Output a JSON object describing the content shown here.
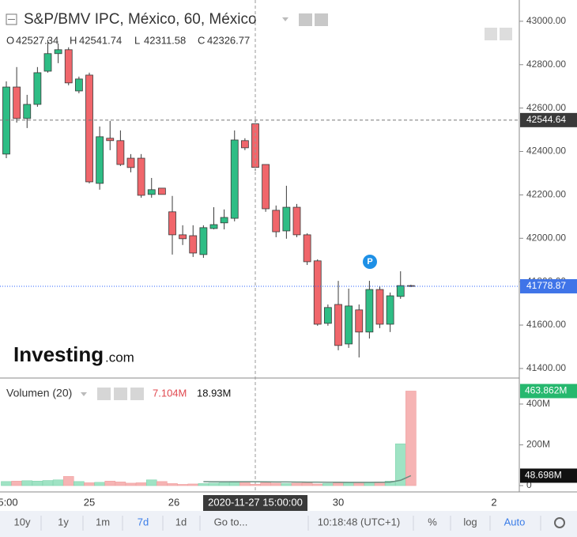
{
  "header": {
    "title": "S&P/BMV IPC, México, 60, México",
    "ohlc_letters": [
      "O",
      "H",
      "L",
      "C"
    ]
  },
  "logo": {
    "text": "Investing",
    "suffix": ".com"
  },
  "badge": "P",
  "toolbar": [
    "10y",
    "1y",
    "1m",
    "7d",
    "1d",
    "Go to...",
    "10:18:48 (UTC+1)",
    "%",
    "log",
    "Auto"
  ],
  "chart_data": [
    {
      "type": "candlestick",
      "up_color": "#2ebd85",
      "down_color": "#f0666b",
      "x_labels": [
        "5:00",
        "25",
        "26",
        "30",
        "2"
      ],
      "open": [
        42388,
        42697,
        42552,
        42617,
        42770,
        42851,
        42869,
        42679,
        42752,
        42253,
        42461,
        42450,
        42369,
        42369,
        42202,
        42231,
        42122,
        42016,
        42012,
        41925,
        42045,
        42071,
        42092,
        42450,
        42527.34,
        42340,
        42129,
        42034,
        42143,
        42016,
        41896,
        41608,
        41695,
        41513,
        41670,
        41568,
        41764,
        41604,
        41732,
        41782
      ],
      "high": [
        42723,
        42789,
        42661,
        42789,
        42916,
        42898,
        42880,
        42745,
        42763,
        42515,
        42541,
        42497,
        42388,
        42388,
        42278,
        42231,
        42195,
        42060,
        42060,
        42060,
        42143,
        42133,
        42497,
        42461,
        42541.74,
        42340,
        42151,
        42242,
        42158,
        42023,
        41903,
        41695,
        41804,
        41768,
        41695,
        41804,
        41779,
        41750,
        41848,
        41786
      ],
      "low": [
        42369,
        42533,
        42508,
        42606,
        42763,
        42807,
        42705,
        42668,
        42253,
        42224,
        42406,
        42333,
        42304,
        42187,
        42187,
        42202,
        41925,
        41969,
        41914,
        41910,
        42041,
        42041,
        42078,
        42406,
        42311.58,
        42122,
        42005,
        41998,
        42005,
        41877,
        41597,
        41597,
        41484,
        41495,
        41451,
        41538,
        41586,
        41568,
        41721,
        41775
      ],
      "close": [
        42697,
        42552,
        42617,
        42763,
        42851,
        42869,
        42716,
        42734,
        42260,
        42468,
        42450,
        42340,
        42326,
        42198,
        42224,
        42202,
        42016,
        41998,
        41932,
        42049,
        42063,
        42096,
        42453,
        42417,
        42326.77,
        42136,
        42030,
        42143,
        42016,
        41892,
        41604,
        41681,
        41506,
        41688,
        41568,
        41764,
        41604,
        41735,
        41782,
        41778.87
      ],
      "ylim": [
        41356,
        43098
      ],
      "yticks": [
        {
          "value": 41400,
          "label": "41400.00"
        },
        {
          "value": 41600,
          "label": "41600.00"
        },
        {
          "value": 41800,
          "label": "41800.00"
        },
        {
          "value": 42000,
          "label": "42000.00"
        },
        {
          "value": 42200,
          "label": "42200.00"
        },
        {
          "value": 42400,
          "label": "42400.00"
        },
        {
          "value": 42600,
          "label": "42600.00"
        },
        {
          "value": 42800,
          "label": "42800.00"
        },
        {
          "value": 43000,
          "label": "43000.00"
        }
      ],
      "crosshair": {
        "time": "2020-11-27 15:00:00",
        "price": 42544.64,
        "index": 24
      }
    },
    {
      "type": "bar",
      "title": "Volumen (20)",
      "up_color": "#9fe3c4",
      "down_color": "#f6b4b4",
      "ma_color": "#6b8f82",
      "values": [
        20000000,
        22000000,
        24000000,
        22000000,
        25000000,
        28000000,
        45000000,
        20000000,
        14000000,
        16000000,
        22000000,
        18000000,
        12000000,
        14000000,
        28000000,
        20000000,
        10000000,
        6000000,
        8000000,
        10000000,
        12000000,
        14000000,
        16000000,
        18000000,
        7104000,
        15000000,
        12000000,
        10000000,
        12000000,
        14000000,
        8000000,
        10000000,
        12000000,
        14000000,
        12000000,
        16000000,
        18000000,
        22000000,
        205000000,
        463862000
      ],
      "value_labels": [
        null,
        null,
        null,
        null,
        null,
        null,
        null,
        null,
        null,
        null,
        null,
        null,
        null,
        null,
        null,
        null,
        null,
        null,
        null,
        null,
        null,
        null,
        null,
        null,
        "7.104M",
        null,
        null,
        null,
        null,
        null,
        null,
        null,
        null,
        null,
        null,
        null,
        null,
        null,
        null,
        "463.862M"
      ],
      "ma_values": [
        null,
        null,
        null,
        null,
        null,
        null,
        null,
        null,
        null,
        null,
        null,
        null,
        null,
        null,
        null,
        null,
        null,
        null,
        null,
        19500000,
        19000000,
        18800000,
        18700000,
        18900000,
        18930000,
        18500000,
        18000000,
        17800000,
        17500000,
        17000000,
        16800000,
        16500000,
        16300000,
        16200000,
        16100000,
        16000000,
        16500000,
        17000000,
        26000000,
        48698000
      ],
      "ma_labels": [
        null,
        null,
        null,
        null,
        null,
        null,
        null,
        null,
        null,
        null,
        null,
        null,
        null,
        null,
        null,
        null,
        null,
        null,
        null,
        null,
        null,
        null,
        null,
        null,
        "18.93M",
        null,
        null,
        null,
        null,
        null,
        null,
        null,
        null,
        null,
        null,
        null,
        null,
        null,
        null,
        "48.698M"
      ],
      "ylim": [
        0,
        520000000
      ],
      "yticks": [
        0,
        {
          "value": 200000000,
          "label": "200M"
        },
        {
          "value": 400000000,
          "label": "400M"
        }
      ]
    }
  ]
}
